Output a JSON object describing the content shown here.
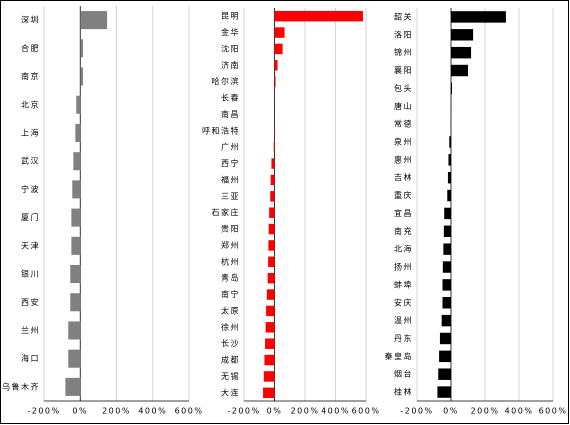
{
  "chart_data": [
    {
      "type": "bar",
      "color": "#808080",
      "categories": [
        "深圳",
        "合肥",
        "南京",
        "北京",
        "上海",
        "武汉",
        "宁波",
        "厦门",
        "天津",
        "银川",
        "西安",
        "兰州",
        "海口",
        "乌鲁木齐"
      ],
      "values": [
        148,
        15,
        15,
        -22,
        -27,
        -38,
        -44,
        -49,
        -49,
        -55,
        -55,
        -66,
        -66,
        -82
      ],
      "xlim": [
        -200,
        600
      ],
      "xticks": [
        {
          "value": -200,
          "label": "-200%"
        },
        {
          "value": 0,
          "label": "0%"
        },
        {
          "value": 200,
          "label": "200%"
        },
        {
          "value": 400,
          "label": "400%"
        },
        {
          "value": 600,
          "label": "600%"
        }
      ],
      "grid": true
    },
    {
      "type": "bar",
      "color": "#ff0000",
      "categories": [
        "昆明",
        "金华",
        "沈阳",
        "济南",
        "哈尔滨",
        "长春",
        "南昌",
        "呼和浩特",
        "广州",
        "西宁",
        "福州",
        "三亚",
        "石家庄",
        "贵阳",
        "郑州",
        "杭州",
        "青岛",
        "南宁",
        "太原",
        "徐州",
        "长沙",
        "成都",
        "无锡",
        "大连"
      ],
      "values": [
        580,
        66,
        53,
        20,
        7,
        2,
        1,
        -3,
        -5,
        -20,
        -25,
        -28,
        -35,
        -38,
        -40,
        -42,
        -45,
        -50,
        -55,
        -58,
        -62,
        -66,
        -70,
        -75
      ],
      "xlim": [
        -200,
        600
      ],
      "xticks": [
        {
          "value": -200,
          "label": "-200%"
        },
        {
          "value": 0,
          "label": "0%"
        },
        {
          "value": 200,
          "label": "200%"
        },
        {
          "value": 400,
          "label": "400%"
        },
        {
          "value": 600,
          "label": "600%"
        }
      ],
      "grid": true
    },
    {
      "type": "bar",
      "color": "#000000",
      "categories": [
        "韶关",
        "洛阳",
        "锦州",
        "襄阳",
        "包头",
        "唐山",
        "常德",
        "泉州",
        "惠州",
        "吉林",
        "重庆",
        "宜昌",
        "南充",
        "北海",
        "扬州",
        "蚌埠",
        "安庆",
        "温州",
        "丹东",
        "秦皇岛",
        "烟台",
        "桂林"
      ],
      "values": [
        323,
        130,
        118,
        100,
        6,
        1,
        -1,
        -10,
        -15,
        -18,
        -22,
        -40,
        -42,
        -45,
        -48,
        -50,
        -50,
        -55,
        -65,
        -70,
        -75,
        -80
      ],
      "xlim": [
        -200,
        600
      ],
      "xticks": [
        {
          "value": -200,
          "label": "-200%"
        },
        {
          "value": 0,
          "label": "0%"
        },
        {
          "value": 200,
          "label": "200%"
        },
        {
          "value": 400,
          "label": "400%"
        },
        {
          "value": 600,
          "label": "600%"
        }
      ],
      "grid": true
    }
  ]
}
